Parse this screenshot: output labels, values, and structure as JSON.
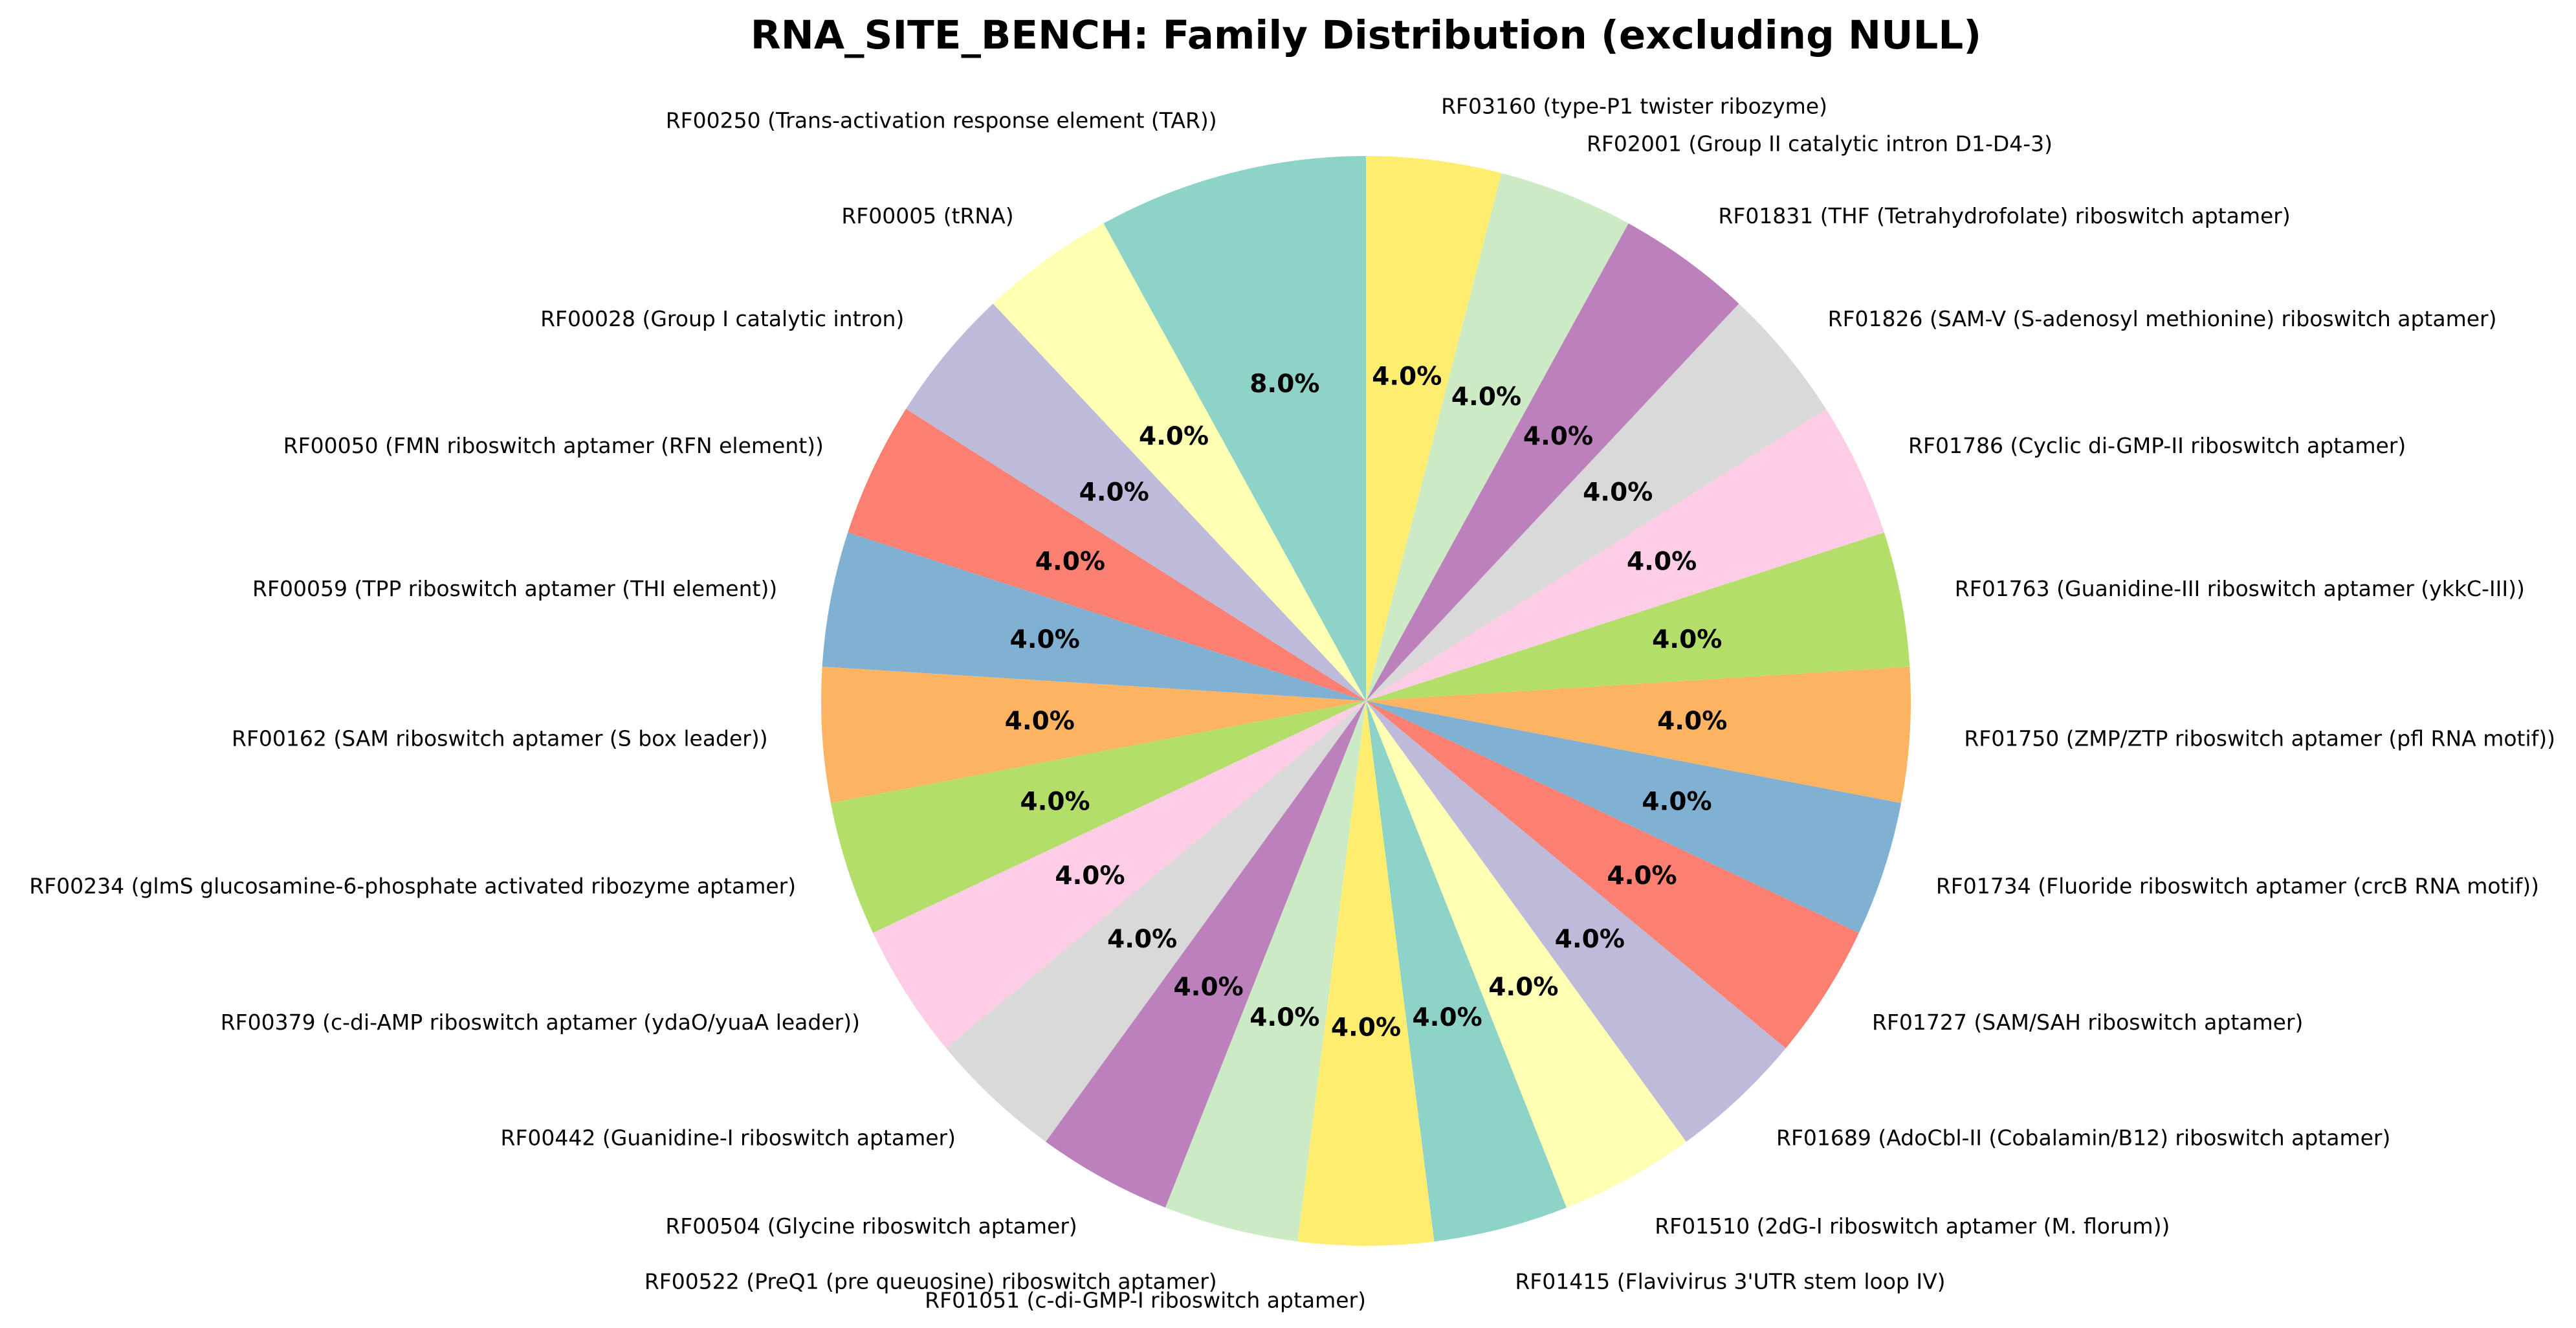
{
  "chart_data": {
    "type": "pie",
    "title": "RNA_SITE_BENCH: Family Distribution (excluding NULL)",
    "start": "top",
    "direction": "counterclockwise",
    "slices": [
      {
        "label": "RF00250 (Trans-activation response element (TAR))",
        "value": 8.0,
        "pct_label": "8.0%",
        "color": "#8dd3c7"
      },
      {
        "label": "RF00005 (tRNA)",
        "value": 4.0,
        "pct_label": "4.0%",
        "color": "#ffffb3"
      },
      {
        "label": "RF00028 (Group I catalytic intron)",
        "value": 4.0,
        "pct_label": "4.0%",
        "color": "#bebada"
      },
      {
        "label": "RF00050 (FMN riboswitch aptamer (RFN element))",
        "value": 4.0,
        "pct_label": "4.0%",
        "color": "#fb8072"
      },
      {
        "label": "RF00059 (TPP riboswitch aptamer (THI element))",
        "value": 4.0,
        "pct_label": "4.0%",
        "color": "#80b1d3"
      },
      {
        "label": "RF00162 (SAM riboswitch aptamer (S box leader))",
        "value": 4.0,
        "pct_label": "4.0%",
        "color": "#fdb462"
      },
      {
        "label": "RF00234 (glmS glucosamine-6-phosphate activated ribozyme aptamer)",
        "value": 4.0,
        "pct_label": "4.0%",
        "color": "#b3de69"
      },
      {
        "label": "RF00379 (c-di-AMP riboswitch aptamer (ydaO/yuaA leader))",
        "value": 4.0,
        "pct_label": "4.0%",
        "color": "#fccde5"
      },
      {
        "label": "RF00442 (Guanidine-I riboswitch aptamer)",
        "value": 4.0,
        "pct_label": "4.0%",
        "color": "#d9d9d9"
      },
      {
        "label": "RF00504 (Glycine riboswitch aptamer)",
        "value": 4.0,
        "pct_label": "4.0%",
        "color": "#bc80bd"
      },
      {
        "label": "RF00522 (PreQ1 (pre queuosine) riboswitch aptamer)",
        "value": 4.0,
        "pct_label": "4.0%",
        "color": "#ccebc5"
      },
      {
        "label": "RF01051 (c-di-GMP-I riboswitch aptamer)",
        "value": 4.0,
        "pct_label": "4.0%",
        "color": "#ffed6f"
      },
      {
        "label": "RF01415 (Flavivirus 3'UTR stem loop IV)",
        "value": 4.0,
        "pct_label": "4.0%",
        "color": "#8dd3c7"
      },
      {
        "label": "RF01510 (2dG-I riboswitch aptamer (M. florum))",
        "value": 4.0,
        "pct_label": "4.0%",
        "color": "#ffffb3"
      },
      {
        "label": "RF01689 (AdoCbl-II (Cobalamin/B12) riboswitch aptamer)",
        "value": 4.0,
        "pct_label": "4.0%",
        "color": "#bebada"
      },
      {
        "label": "RF01727 (SAM/SAH riboswitch aptamer)",
        "value": 4.0,
        "pct_label": "4.0%",
        "color": "#fb8072"
      },
      {
        "label": "RF01734 (Fluoride riboswitch aptamer (crcB RNA motif))",
        "value": 4.0,
        "pct_label": "4.0%",
        "color": "#80b1d3"
      },
      {
        "label": "RF01750 (ZMP/ZTP riboswitch aptamer (pfl RNA motif))",
        "value": 4.0,
        "pct_label": "4.0%",
        "color": "#fdb462"
      },
      {
        "label": "RF01763 (Guanidine-III riboswitch aptamer (ykkC-III))",
        "value": 4.0,
        "pct_label": "4.0%",
        "color": "#b3de69"
      },
      {
        "label": "RF01786 (Cyclic di-GMP-II riboswitch aptamer)",
        "value": 4.0,
        "pct_label": "4.0%",
        "color": "#fccde5"
      },
      {
        "label": "RF01826 (SAM-V (S-adenosyl methionine) riboswitch aptamer)",
        "value": 4.0,
        "pct_label": "4.0%",
        "color": "#d9d9d9"
      },
      {
        "label": "RF01831 (THF (Tetrahydrofolate) riboswitch aptamer)",
        "value": 4.0,
        "pct_label": "4.0%",
        "color": "#bc80bd"
      },
      {
        "label": "RF02001 (Group II catalytic intron D1-D4-3)",
        "value": 4.0,
        "pct_label": "4.0%",
        "color": "#ccebc5"
      },
      {
        "label": "RF03160 (type-P1 twister ribozyme)",
        "value": 4.0,
        "pct_label": "4.0%",
        "color": "#ffed6f"
      }
    ]
  }
}
